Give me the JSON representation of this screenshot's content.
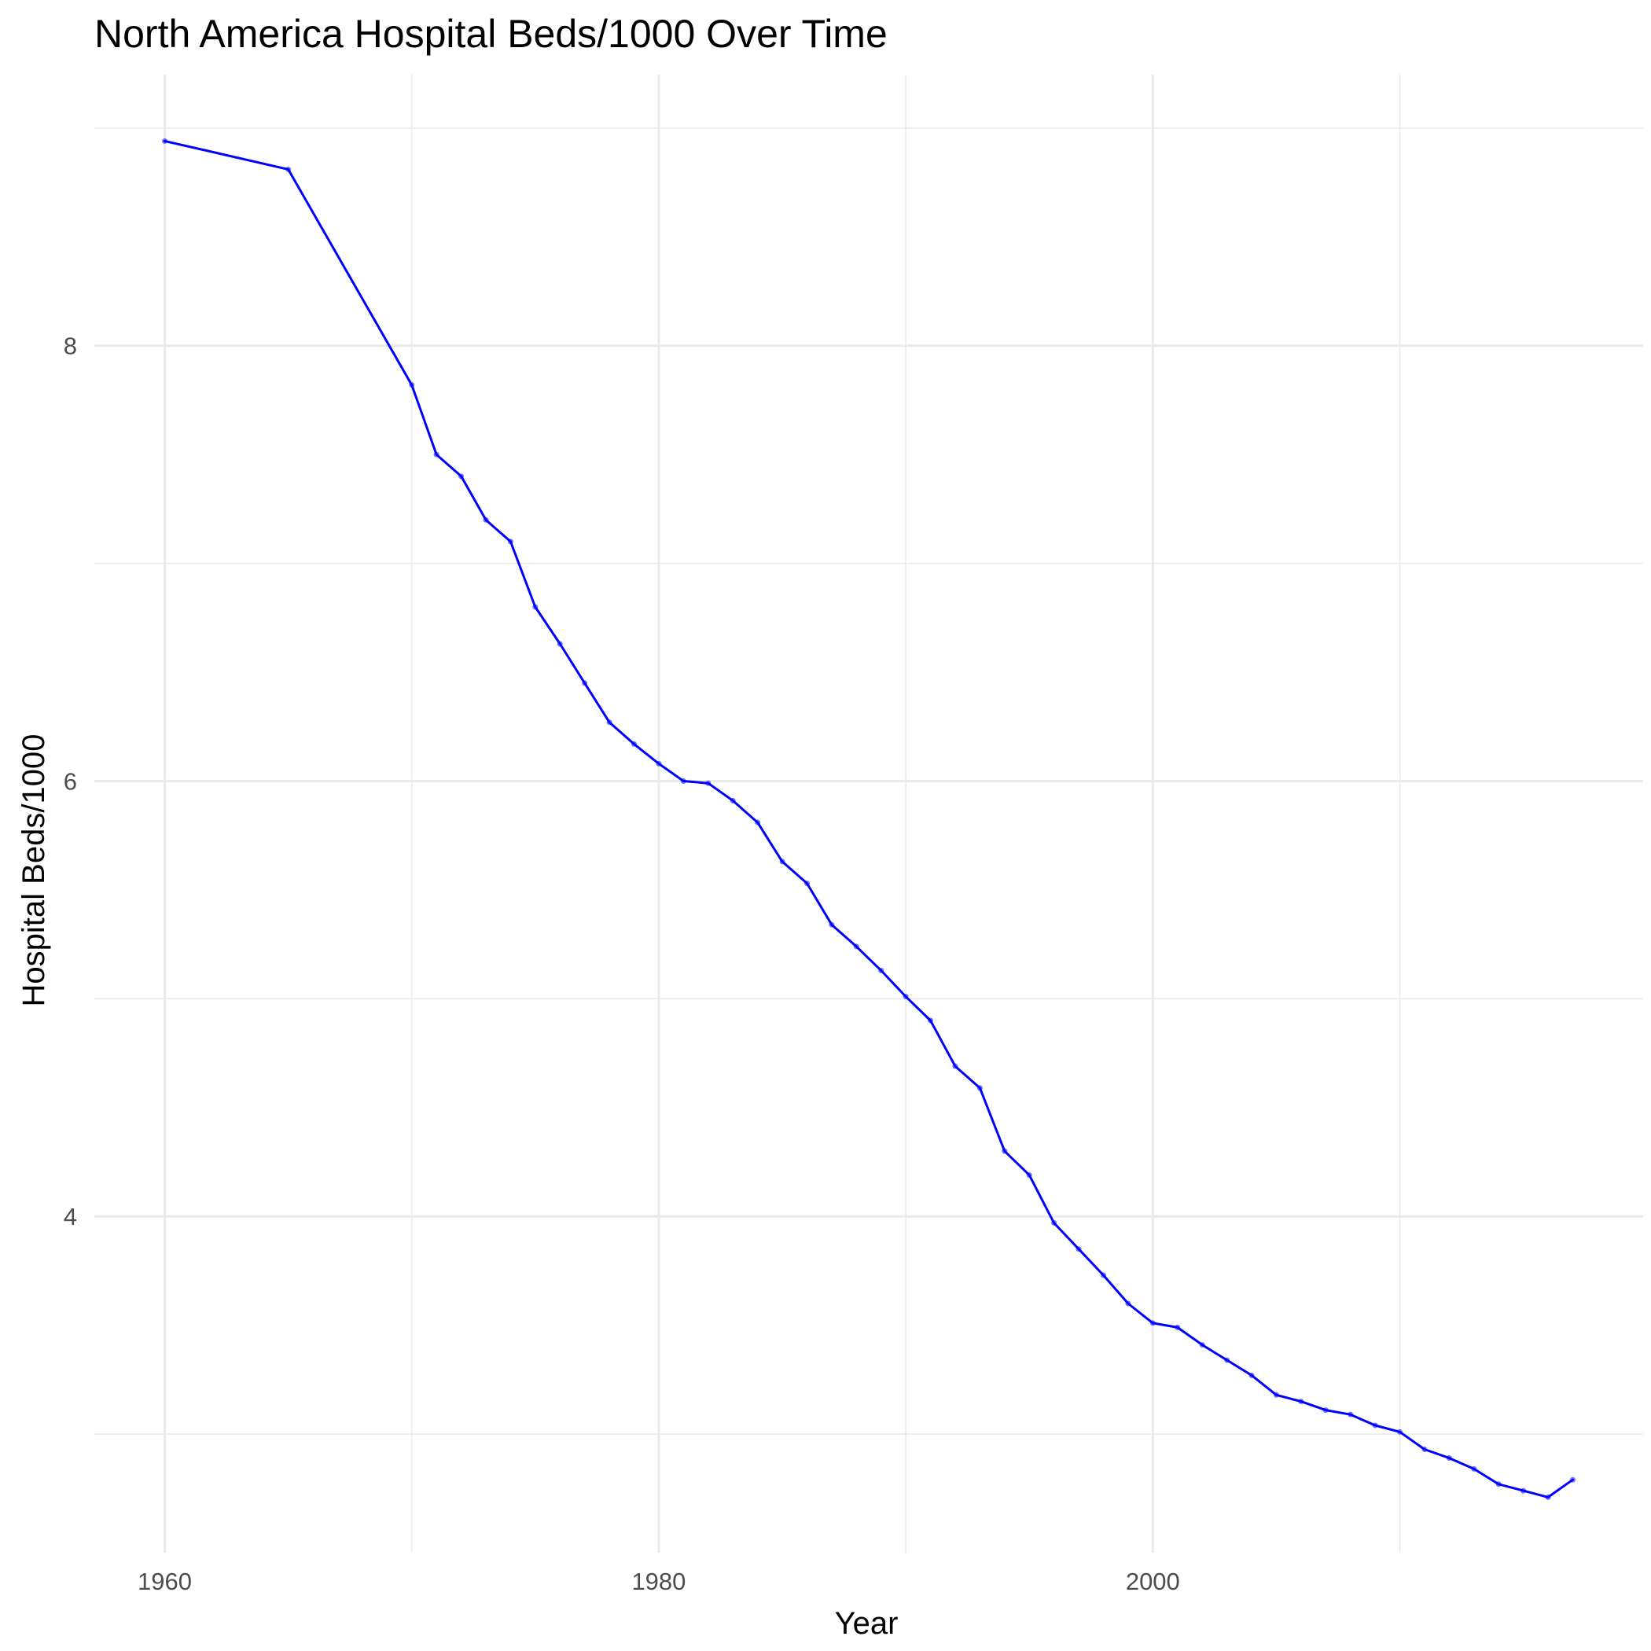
{
  "chart_data": {
    "type": "line",
    "title": "North America Hospital Beds/1000 Over Time",
    "xlabel": "Year",
    "ylabel": "Hospital Beds/1000",
    "xlim": [
      1957.15,
      2019.85
    ],
    "ylim": [
      2.455,
      9.245
    ],
    "x_ticks": [
      1960,
      1980,
      2000
    ],
    "x_tick_labels": [
      "1960",
      "1980",
      "2000"
    ],
    "y_ticks": [
      4,
      6,
      8
    ],
    "y_tick_labels": [
      "4",
      "6",
      "8"
    ],
    "x_minor_ticks": [
      1970,
      1990,
      2010
    ],
    "y_minor_ticks": [
      3,
      5,
      7,
      9
    ],
    "grid": true,
    "legend": "none",
    "line_color": "#0000ff",
    "series": [
      {
        "x": [
          1960,
          1965,
          1970,
          1971,
          1972,
          1973,
          1974,
          1975,
          1976,
          1977,
          1978,
          1979,
          1980,
          1981,
          1982,
          1983,
          1984,
          1985,
          1986,
          1987,
          1988,
          1989,
          1990,
          1991,
          1992,
          1993,
          1994,
          1995,
          1996,
          1997,
          1998,
          1999,
          2000,
          2001,
          2002,
          2003,
          2004,
          2005,
          2006,
          2007,
          2008,
          2009,
          2010,
          2011,
          2012,
          2013,
          2014,
          2015,
          2016,
          2017
        ],
        "values": [
          8.94,
          8.81,
          7.82,
          7.5,
          7.4,
          7.2,
          7.1,
          6.8,
          6.63,
          6.45,
          6.27,
          6.17,
          6.08,
          6.0,
          5.99,
          5.91,
          5.81,
          5.63,
          5.53,
          5.34,
          5.24,
          5.13,
          5.01,
          4.9,
          4.69,
          4.59,
          4.3,
          4.19,
          3.97,
          3.85,
          3.73,
          3.6,
          3.51,
          3.49,
          3.41,
          3.34,
          3.27,
          3.18,
          3.15,
          3.11,
          3.09,
          3.04,
          3.01,
          2.93,
          2.89,
          2.84,
          2.77,
          2.74,
          2.71,
          2.79
        ]
      }
    ]
  }
}
